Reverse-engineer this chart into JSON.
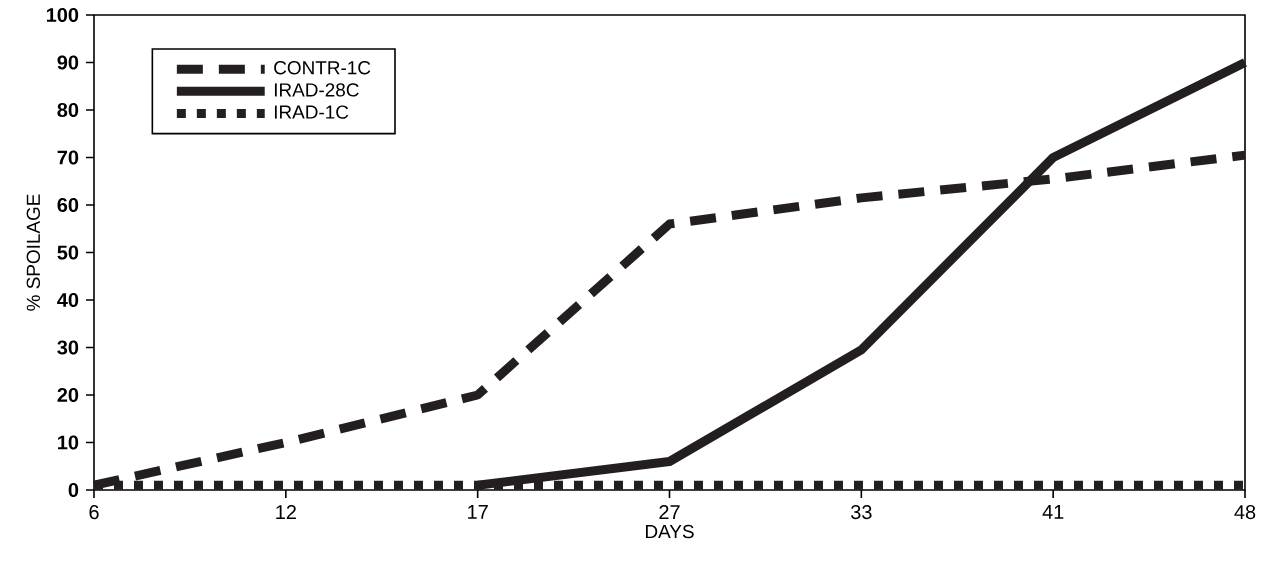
{
  "chart_data": {
    "type": "line",
    "xlabel": "DAYS",
    "ylabel": "% SPOILAGE",
    "categories": [
      "6",
      "12",
      "17",
      "27",
      "33",
      "41",
      "48"
    ],
    "ylim": [
      0,
      100
    ],
    "yticks": [
      0,
      10,
      20,
      30,
      40,
      50,
      60,
      70,
      80,
      90,
      100
    ],
    "grid": false,
    "legend": "top left",
    "series": [
      {
        "name": "CONTR-1C",
        "color": "#231f20",
        "line_style": "dashed",
        "values": [
          1,
          10,
          20,
          56,
          61.5,
          65.5,
          70.5
        ]
      },
      {
        "name": "IRAD-28C",
        "color": "#231f20",
        "line_style": "solid",
        "values": [
          null,
          null,
          1,
          6,
          29.5,
          70,
          90
        ]
      },
      {
        "name": "IRAD-1C",
        "color": "#231f20",
        "line_style": "dotted",
        "values": [
          1,
          1,
          1,
          1,
          1,
          1,
          1
        ]
      }
    ]
  }
}
